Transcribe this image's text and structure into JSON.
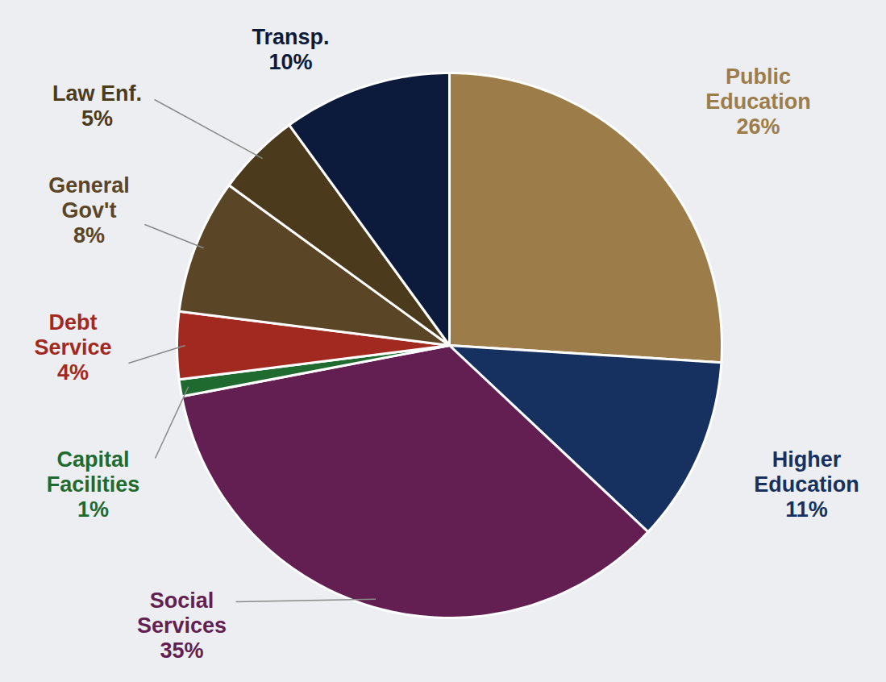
{
  "chart_data": {
    "type": "pie",
    "categories": [
      "Public Education",
      "Higher Education",
      "Social Services",
      "Capital Facilities",
      "Debt Service",
      "General Gov't",
      "Law Enf.",
      "Transp."
    ],
    "values": [
      26,
      11,
      35,
      1,
      4,
      8,
      5,
      10
    ],
    "value_labels": [
      "26%",
      "11%",
      "35%",
      "1%",
      "4%",
      "8%",
      "5%",
      "10%"
    ],
    "colors": [
      "#9c7d4a",
      "#16305f",
      "#641f52",
      "#1f6a2f",
      "#a2291f",
      "#5b4527",
      "#4c3a1d",
      "#0c1b3b"
    ],
    "data_labels": true
  }
}
